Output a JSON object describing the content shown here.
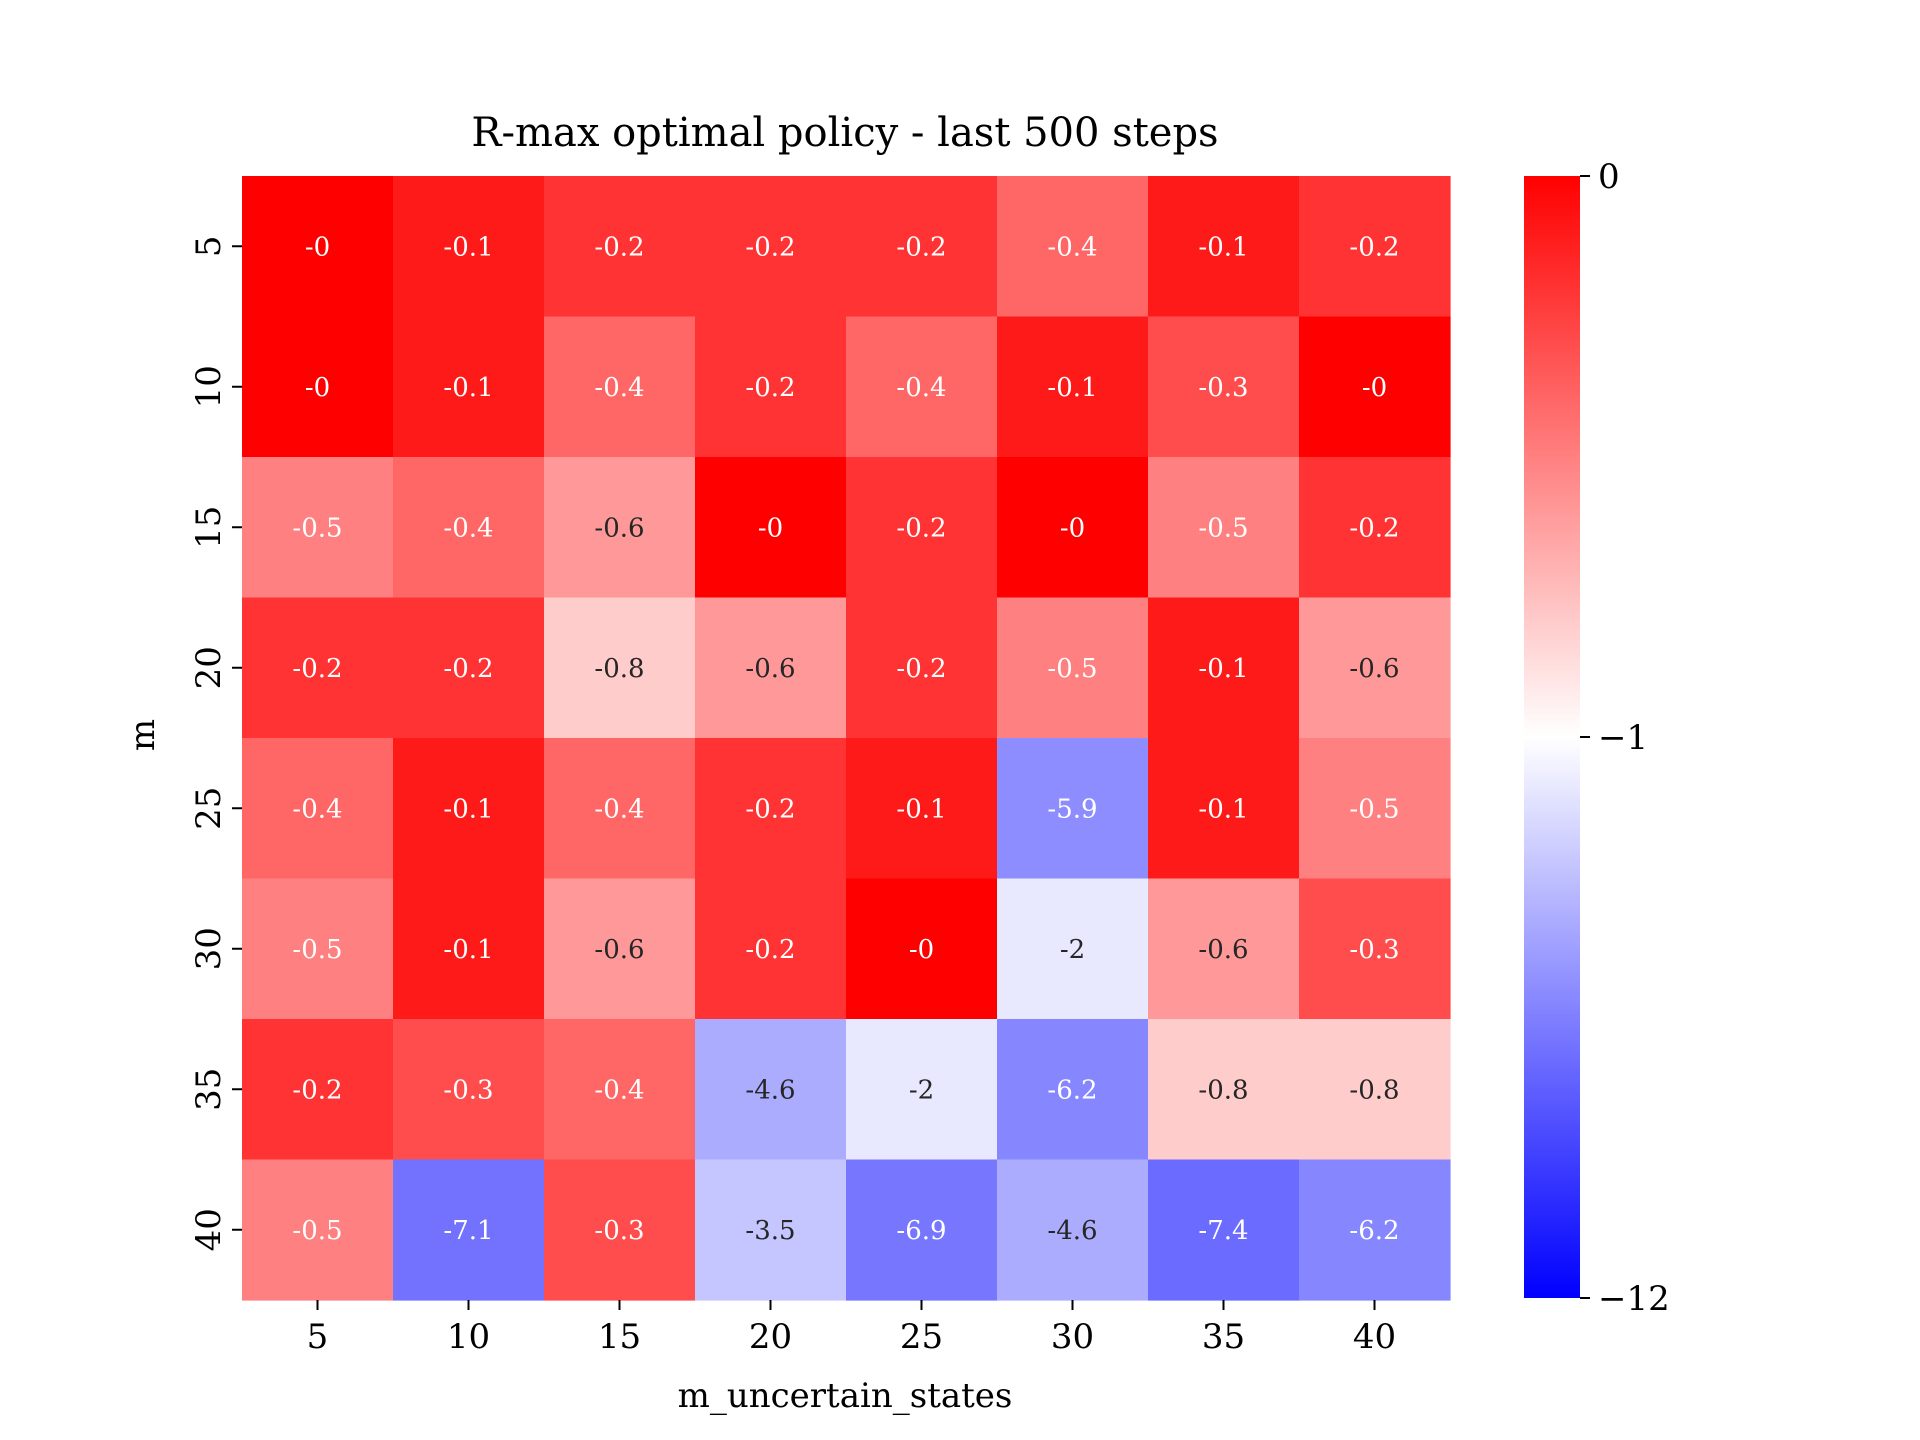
{
  "chart_data": {
    "type": "heatmap",
    "title": "R-max optimal policy - last 500 steps",
    "xlabel": "m_uncertain_states",
    "ylabel": "m",
    "x_categories": [
      "5",
      "10",
      "15",
      "20",
      "25",
      "30",
      "35",
      "40"
    ],
    "y_categories": [
      "5",
      "10",
      "15",
      "20",
      "25",
      "30",
      "35",
      "40"
    ],
    "values": [
      [
        -0.0,
        -0.1,
        -0.2,
        -0.2,
        -0.2,
        -0.4,
        -0.1,
        -0.2
      ],
      [
        -0.0,
        -0.1,
        -0.4,
        -0.2,
        -0.4,
        -0.1,
        -0.3,
        -0.0
      ],
      [
        -0.5,
        -0.4,
        -0.6,
        -0.0,
        -0.2,
        -0.0,
        -0.5,
        -0.2
      ],
      [
        -0.2,
        -0.2,
        -0.8,
        -0.6,
        -0.2,
        -0.5,
        -0.1,
        -0.6
      ],
      [
        -0.4,
        -0.1,
        -0.4,
        -0.2,
        -0.1,
        -5.9,
        -0.1,
        -0.5
      ],
      [
        -0.5,
        -0.1,
        -0.6,
        -0.2,
        -0.0,
        -2.0,
        -0.6,
        -0.3
      ],
      [
        -0.2,
        -0.3,
        -0.4,
        -4.6,
        -2.0,
        -6.2,
        -0.8,
        -0.8
      ],
      [
        -0.5,
        -7.1,
        -0.3,
        -3.5,
        -6.9,
        -4.6,
        -7.4,
        -6.2
      ]
    ],
    "annotations": [
      [
        "-0",
        "-0.1",
        "-0.2",
        "-0.2",
        "-0.2",
        "-0.4",
        "-0.1",
        "-0.2"
      ],
      [
        "-0",
        "-0.1",
        "-0.4",
        "-0.2",
        "-0.4",
        "-0.1",
        "-0.3",
        "-0"
      ],
      [
        "-0.5",
        "-0.4",
        "-0.6",
        "-0",
        "-0.2",
        "-0",
        "-0.5",
        "-0.2"
      ],
      [
        "-0.2",
        "-0.2",
        "-0.8",
        "-0.6",
        "-0.2",
        "-0.5",
        "-0.1",
        "-0.6"
      ],
      [
        "-0.4",
        "-0.1",
        "-0.4",
        "-0.2",
        "-0.1",
        "-5.9",
        "-0.1",
        "-0.5"
      ],
      [
        "-0.5",
        "-0.1",
        "-0.6",
        "-0.2",
        "-0",
        "-2",
        "-0.6",
        "-0.3"
      ],
      [
        "-0.2",
        "-0.3",
        "-0.4",
        "-4.6",
        "-2",
        "-6.2",
        "-0.8",
        "-0.8"
      ],
      [
        "-0.5",
        "-7.1",
        "-0.3",
        "-3.5",
        "-6.9",
        "-4.6",
        "-7.4",
        "-6.2"
      ]
    ],
    "colorbar": {
      "ticks": [
        0,
        -1,
        -12
      ],
      "tick_labels": [
        "0",
        "−1",
        "−12"
      ],
      "scale": "two-slope, centered at -1",
      "range": [
        -12,
        0
      ]
    },
    "colormap": {
      "high": "#ff0000",
      "center": "#ffffff",
      "low": "#0000ff"
    },
    "text_colors": {
      "dark_cell": "#ffffff",
      "light_cell": "#262626"
    }
  }
}
